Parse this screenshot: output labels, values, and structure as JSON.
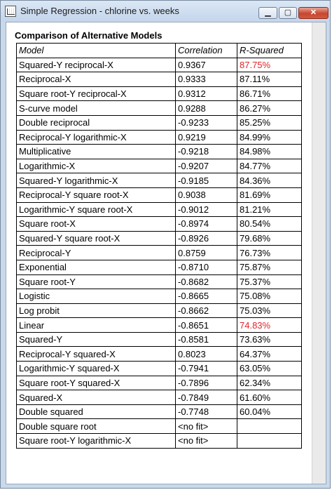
{
  "window": {
    "title": "Simple Regression - chlorine vs. weeks",
    "controls": {
      "minimize": "▁",
      "maximize": "▢",
      "close": "✕"
    }
  },
  "panel": {
    "heading": "Comparison of Alternative Models",
    "columns": [
      "Model",
      "Correlation",
      "R-Squared"
    ],
    "highlight_color": "#e1252b",
    "rows": [
      {
        "model": "Squared-Y reciprocal-X",
        "correlation": "0.9367",
        "r_squared": "87.75%",
        "highlight": true
      },
      {
        "model": "Reciprocal-X",
        "correlation": "0.9333",
        "r_squared": "87.11%",
        "highlight": false
      },
      {
        "model": "Square root-Y reciprocal-X",
        "correlation": "0.9312",
        "r_squared": "86.71%",
        "highlight": false
      },
      {
        "model": "S-curve model",
        "correlation": "0.9288",
        "r_squared": "86.27%",
        "highlight": false
      },
      {
        "model": "Double reciprocal",
        "correlation": "-0.9233",
        "r_squared": "85.25%",
        "highlight": false
      },
      {
        "model": "Reciprocal-Y logarithmic-X",
        "correlation": "0.9219",
        "r_squared": "84.99%",
        "highlight": false
      },
      {
        "model": "Multiplicative",
        "correlation": "-0.9218",
        "r_squared": "84.98%",
        "highlight": false
      },
      {
        "model": "Logarithmic-X",
        "correlation": "-0.9207",
        "r_squared": "84.77%",
        "highlight": false
      },
      {
        "model": "Squared-Y logarithmic-X",
        "correlation": "-0.9185",
        "r_squared": "84.36%",
        "highlight": false
      },
      {
        "model": "Reciprocal-Y square root-X",
        "correlation": "0.9038",
        "r_squared": "81.69%",
        "highlight": false
      },
      {
        "model": "Logarithmic-Y square root-X",
        "correlation": "-0.9012",
        "r_squared": "81.21%",
        "highlight": false
      },
      {
        "model": "Square root-X",
        "correlation": "-0.8974",
        "r_squared": "80.54%",
        "highlight": false
      },
      {
        "model": "Squared-Y square root-X",
        "correlation": "-0.8926",
        "r_squared": "79.68%",
        "highlight": false
      },
      {
        "model": "Reciprocal-Y",
        "correlation": "0.8759",
        "r_squared": "76.73%",
        "highlight": false
      },
      {
        "model": "Exponential",
        "correlation": "-0.8710",
        "r_squared": "75.87%",
        "highlight": false
      },
      {
        "model": "Square root-Y",
        "correlation": "-0.8682",
        "r_squared": "75.37%",
        "highlight": false
      },
      {
        "model": "Logistic",
        "correlation": "-0.8665",
        "r_squared": "75.08%",
        "highlight": false
      },
      {
        "model": "Log probit",
        "correlation": "-0.8662",
        "r_squared": "75.03%",
        "highlight": false
      },
      {
        "model": "Linear",
        "correlation": "-0.8651",
        "r_squared": "74.83%",
        "highlight": true
      },
      {
        "model": "Squared-Y",
        "correlation": "-0.8581",
        "r_squared": "73.63%",
        "highlight": false
      },
      {
        "model": "Reciprocal-Y squared-X",
        "correlation": "0.8023",
        "r_squared": "64.37%",
        "highlight": false
      },
      {
        "model": "Logarithmic-Y squared-X",
        "correlation": "-0.7941",
        "r_squared": "63.05%",
        "highlight": false
      },
      {
        "model": "Square root-Y squared-X",
        "correlation": "-0.7896",
        "r_squared": "62.34%",
        "highlight": false
      },
      {
        "model": "Squared-X",
        "correlation": "-0.7849",
        "r_squared": "61.60%",
        "highlight": false
      },
      {
        "model": "Double squared",
        "correlation": "-0.7748",
        "r_squared": "60.04%",
        "highlight": false
      },
      {
        "model": "Double square root",
        "correlation": "<no fit>",
        "r_squared": "",
        "highlight": false
      },
      {
        "model": "Square root-Y logarithmic-X",
        "correlation": "<no fit>",
        "r_squared": "",
        "highlight": false
      }
    ]
  }
}
